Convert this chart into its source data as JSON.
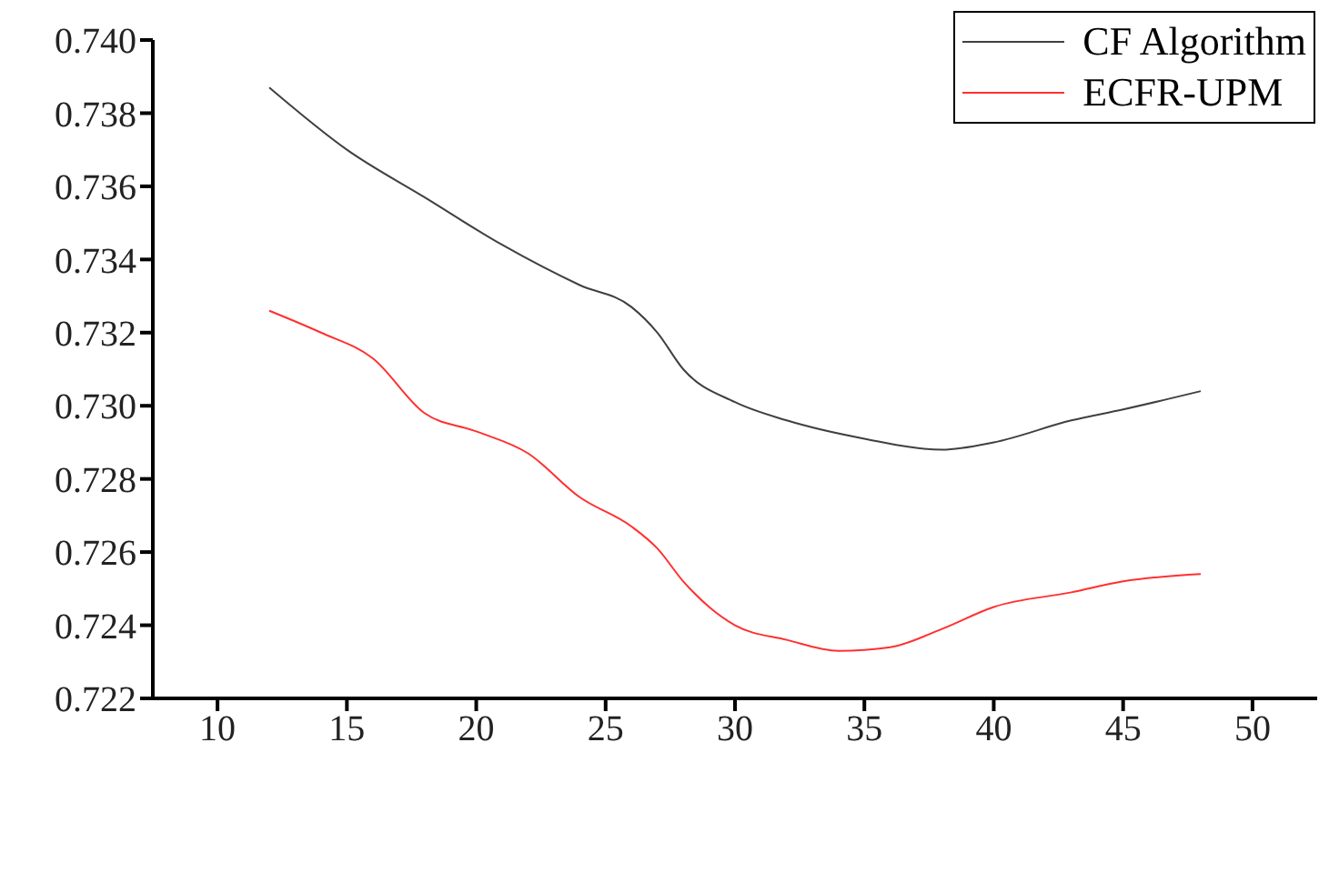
{
  "chart_data": {
    "type": "line",
    "legend": "top right",
    "marker": "none",
    "line_style": "solid",
    "grid": false,
    "xlim": [
      7.5,
      52.5
    ],
    "xticks": [
      10,
      15,
      20,
      25,
      30,
      35,
      40,
      45,
      50
    ],
    "ylim": [
      0.722,
      0.74
    ],
    "yticks": [
      0.722,
      0.724,
      0.726,
      0.728,
      {
        "value": 0.73,
        "label": "0.730"
      },
      0.732,
      0.734,
      0.736,
      0.738,
      {
        "value": 0.74,
        "label": "0.740"
      }
    ],
    "series": [
      {
        "name": "CF Algorithm",
        "color": "#404040",
        "x": [
          12,
          15,
          18,
          21,
          24,
          26,
          27,
          28,
          30,
          32,
          35,
          38,
          40,
          43,
          45,
          48
        ],
        "values": [
          0.7387,
          0.737,
          0.7357,
          0.7344,
          0.7333,
          0.7327,
          0.732,
          0.731,
          0.7301,
          0.7296,
          0.7291,
          0.7288,
          0.729,
          0.7296,
          0.7299,
          0.7304
        ]
      },
      {
        "name": "ECFR-UPM",
        "color": "#ff3030",
        "x": [
          12,
          14,
          16,
          18,
          20,
          22,
          24,
          26,
          27,
          28,
          29,
          30,
          32,
          34,
          36,
          38,
          40,
          43,
          45,
          48
        ],
        "values": [
          0.7326,
          0.732,
          0.7313,
          0.7298,
          0.7293,
          0.7287,
          0.7275,
          0.7267,
          0.7261,
          0.7252,
          0.7245,
          0.724,
          0.7236,
          0.7233,
          0.7234,
          0.7239,
          0.7245,
          0.7249,
          0.7252,
          0.7254
        ]
      }
    ]
  }
}
